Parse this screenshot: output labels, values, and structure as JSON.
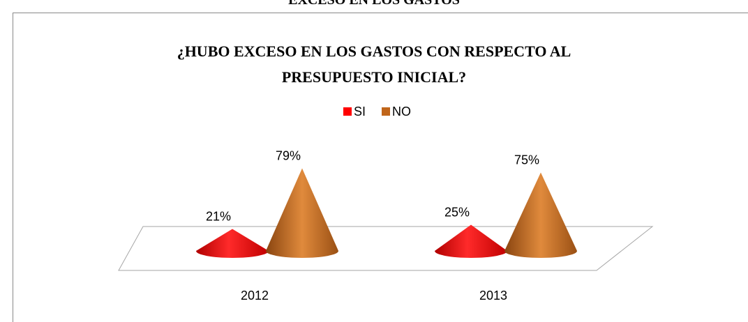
{
  "page_heading": "EXCESO EN LOS GASTOS",
  "chart_data": {
    "type": "cone",
    "title_lines": [
      "¿HUBO EXCESO EN LOS GASTOS CON RESPECTO AL",
      "PRESUPUESTO INICIAL?"
    ],
    "categories": [
      "2012",
      "2013"
    ],
    "series": [
      {
        "name": "SI",
        "color": "#ff0000",
        "values": [
          21,
          25
        ],
        "value_labels": [
          "21%",
          "25%"
        ]
      },
      {
        "name": "NO",
        "color": "#c0651a",
        "values": [
          79,
          75
        ],
        "value_labels": [
          "79%",
          "75%"
        ]
      }
    ],
    "legend": "top"
  }
}
